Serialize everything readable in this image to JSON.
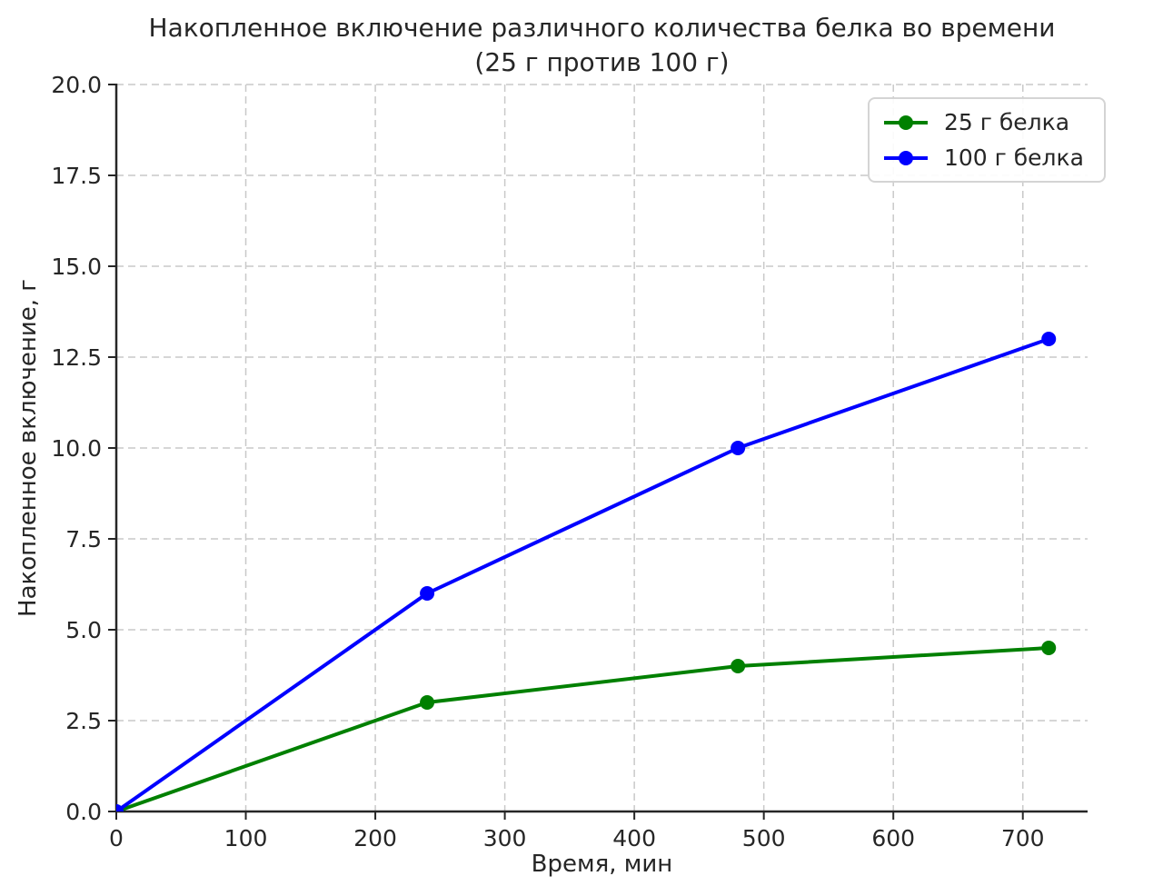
{
  "chart_data": {
    "type": "line",
    "title": "Накопленное включение различного количества белка во времени",
    "subtitle": "(25 г против 100 г)",
    "xlabel": "Время, мин",
    "ylabel": "Накопленное включение, г",
    "x": [
      0,
      240,
      480,
      720
    ],
    "series": [
      {
        "name": "25 г белка",
        "color": "#008000",
        "values": [
          0,
          3,
          4,
          4.5
        ]
      },
      {
        "name": "100 г белка",
        "color": "#0000ff",
        "values": [
          0,
          6,
          10,
          13
        ]
      }
    ],
    "xlim": [
      0,
      750
    ],
    "ylim": [
      0,
      20
    ],
    "xticks": [
      0,
      100,
      200,
      300,
      400,
      500,
      600,
      700
    ],
    "xtick_labels": [
      "0",
      "100",
      "200",
      "300",
      "400",
      "500",
      "600",
      "700"
    ],
    "yticks": [
      0,
      2.5,
      5,
      7.5,
      10,
      12.5,
      15,
      17.5,
      20
    ],
    "ytick_labels": [
      "0.0",
      "2.5",
      "5.0",
      "7.5",
      "10.0",
      "12.5",
      "15.0",
      "17.5",
      "20.0"
    ],
    "grid": true,
    "grid_style": "dashed",
    "legend_position": "upper right",
    "background": "#ffffff"
  }
}
